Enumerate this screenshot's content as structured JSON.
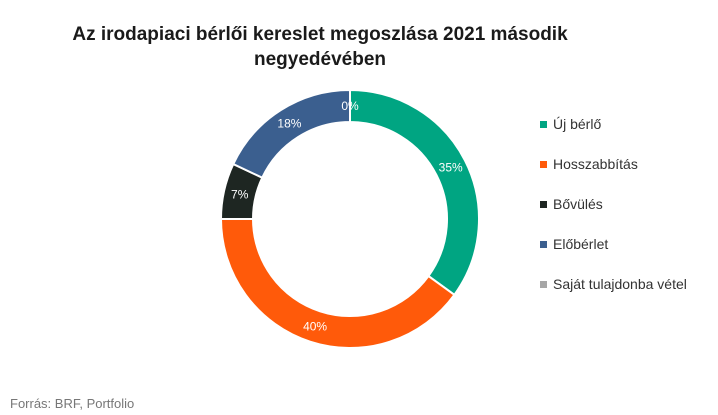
{
  "title": {
    "line1": "Az irodapiaci bérlői kereslet megoszlása 2021 második",
    "line2": "negyedévében"
  },
  "source": "Forrás: BRF, Portfolio",
  "chart_data": {
    "type": "pie",
    "variant": "donut",
    "categories": [
      "Új bérlő",
      "Hosszabbítás",
      "Bővülés",
      "Előbérlet",
      "Saját tulajdonba vétel"
    ],
    "values": [
      35,
      40,
      7,
      18,
      0
    ],
    "data_labels": [
      "35%",
      "40%",
      "7%",
      "18%",
      "0%"
    ],
    "colors": [
      "#00a582",
      "#ff5a0a",
      "#1e2622",
      "#3b5f8f",
      "#a6a6a6"
    ],
    "legend_position": "right",
    "legend_labels": {
      "item0": "Új bérlő",
      "item1": "Hosszabbítás",
      "item2": "Bővülés",
      "item3": "Előbérlet",
      "item4": "Saját tulajdonba vétel"
    }
  }
}
